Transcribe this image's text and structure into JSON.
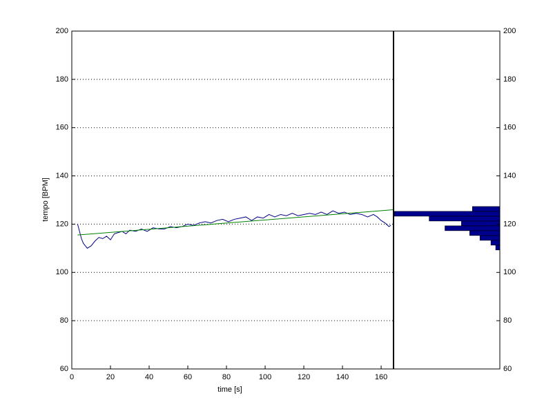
{
  "chart_data": [
    {
      "type": "line",
      "xlabel": "time [s]",
      "ylabel": "tempo [BPM]",
      "xlim": [
        0,
        166.4
      ],
      "xticks": [
        0,
        20,
        40,
        60,
        80,
        100,
        120,
        140,
        160
      ],
      "ylim": [
        60,
        200
      ],
      "yticks": [
        60,
        80,
        100,
        120,
        140,
        160,
        180,
        200
      ],
      "grid": true,
      "series": [
        {
          "name": "tempo",
          "color": "#00008b",
          "x": [
            3,
            4,
            5,
            6,
            7,
            8,
            9,
            10,
            12,
            14,
            16,
            18,
            20,
            22,
            24,
            26,
            28,
            30,
            33,
            36,
            39,
            42,
            45,
            48,
            51,
            54,
            57,
            60,
            63,
            66,
            69,
            72,
            75,
            78,
            81,
            84,
            87,
            90,
            93,
            96,
            99,
            102,
            105,
            108,
            111,
            114,
            117,
            120,
            123,
            126,
            129,
            132,
            135,
            138,
            141,
            144,
            147,
            150,
            153,
            156,
            158,
            160,
            162,
            164,
            165
          ],
          "values": [
            120,
            117,
            114,
            112,
            111,
            110,
            110.5,
            111,
            113,
            114.5,
            114,
            115,
            113.5,
            116,
            116.5,
            117,
            116,
            117.5,
            117,
            118,
            117,
            118.5,
            118,
            118,
            119,
            118.5,
            119,
            120,
            119.5,
            120.5,
            121,
            120.5,
            121.5,
            122,
            121,
            122,
            122.5,
            123,
            121.5,
            123,
            122.5,
            124,
            123,
            124,
            123.5,
            124.5,
            123.5,
            124,
            124.5,
            124,
            125,
            124,
            125.5,
            124.5,
            125,
            124,
            124.5,
            124,
            123,
            124,
            123,
            121.5,
            120.5,
            119,
            119.5
          ]
        },
        {
          "name": "fit",
          "color": "#008000",
          "x": [
            3,
            166.4
          ],
          "values": [
            115.5,
            126
          ]
        }
      ]
    },
    {
      "type": "histogram",
      "orientation": "horizontal",
      "x_reversed": true,
      "ylim": [
        60,
        200
      ],
      "yticks": [
        60,
        80,
        100,
        120,
        140,
        160,
        180,
        200
      ],
      "xlim": [
        0,
        155
      ],
      "color": "#00008f",
      "bins": [
        109.3,
        111.3,
        113.3,
        115.3,
        117.3,
        119.3,
        121.3,
        123.3,
        125.3,
        127.3
      ],
      "values": [
        6,
        13,
        29,
        44,
        80,
        56,
        103,
        154,
        40
      ]
    }
  ]
}
